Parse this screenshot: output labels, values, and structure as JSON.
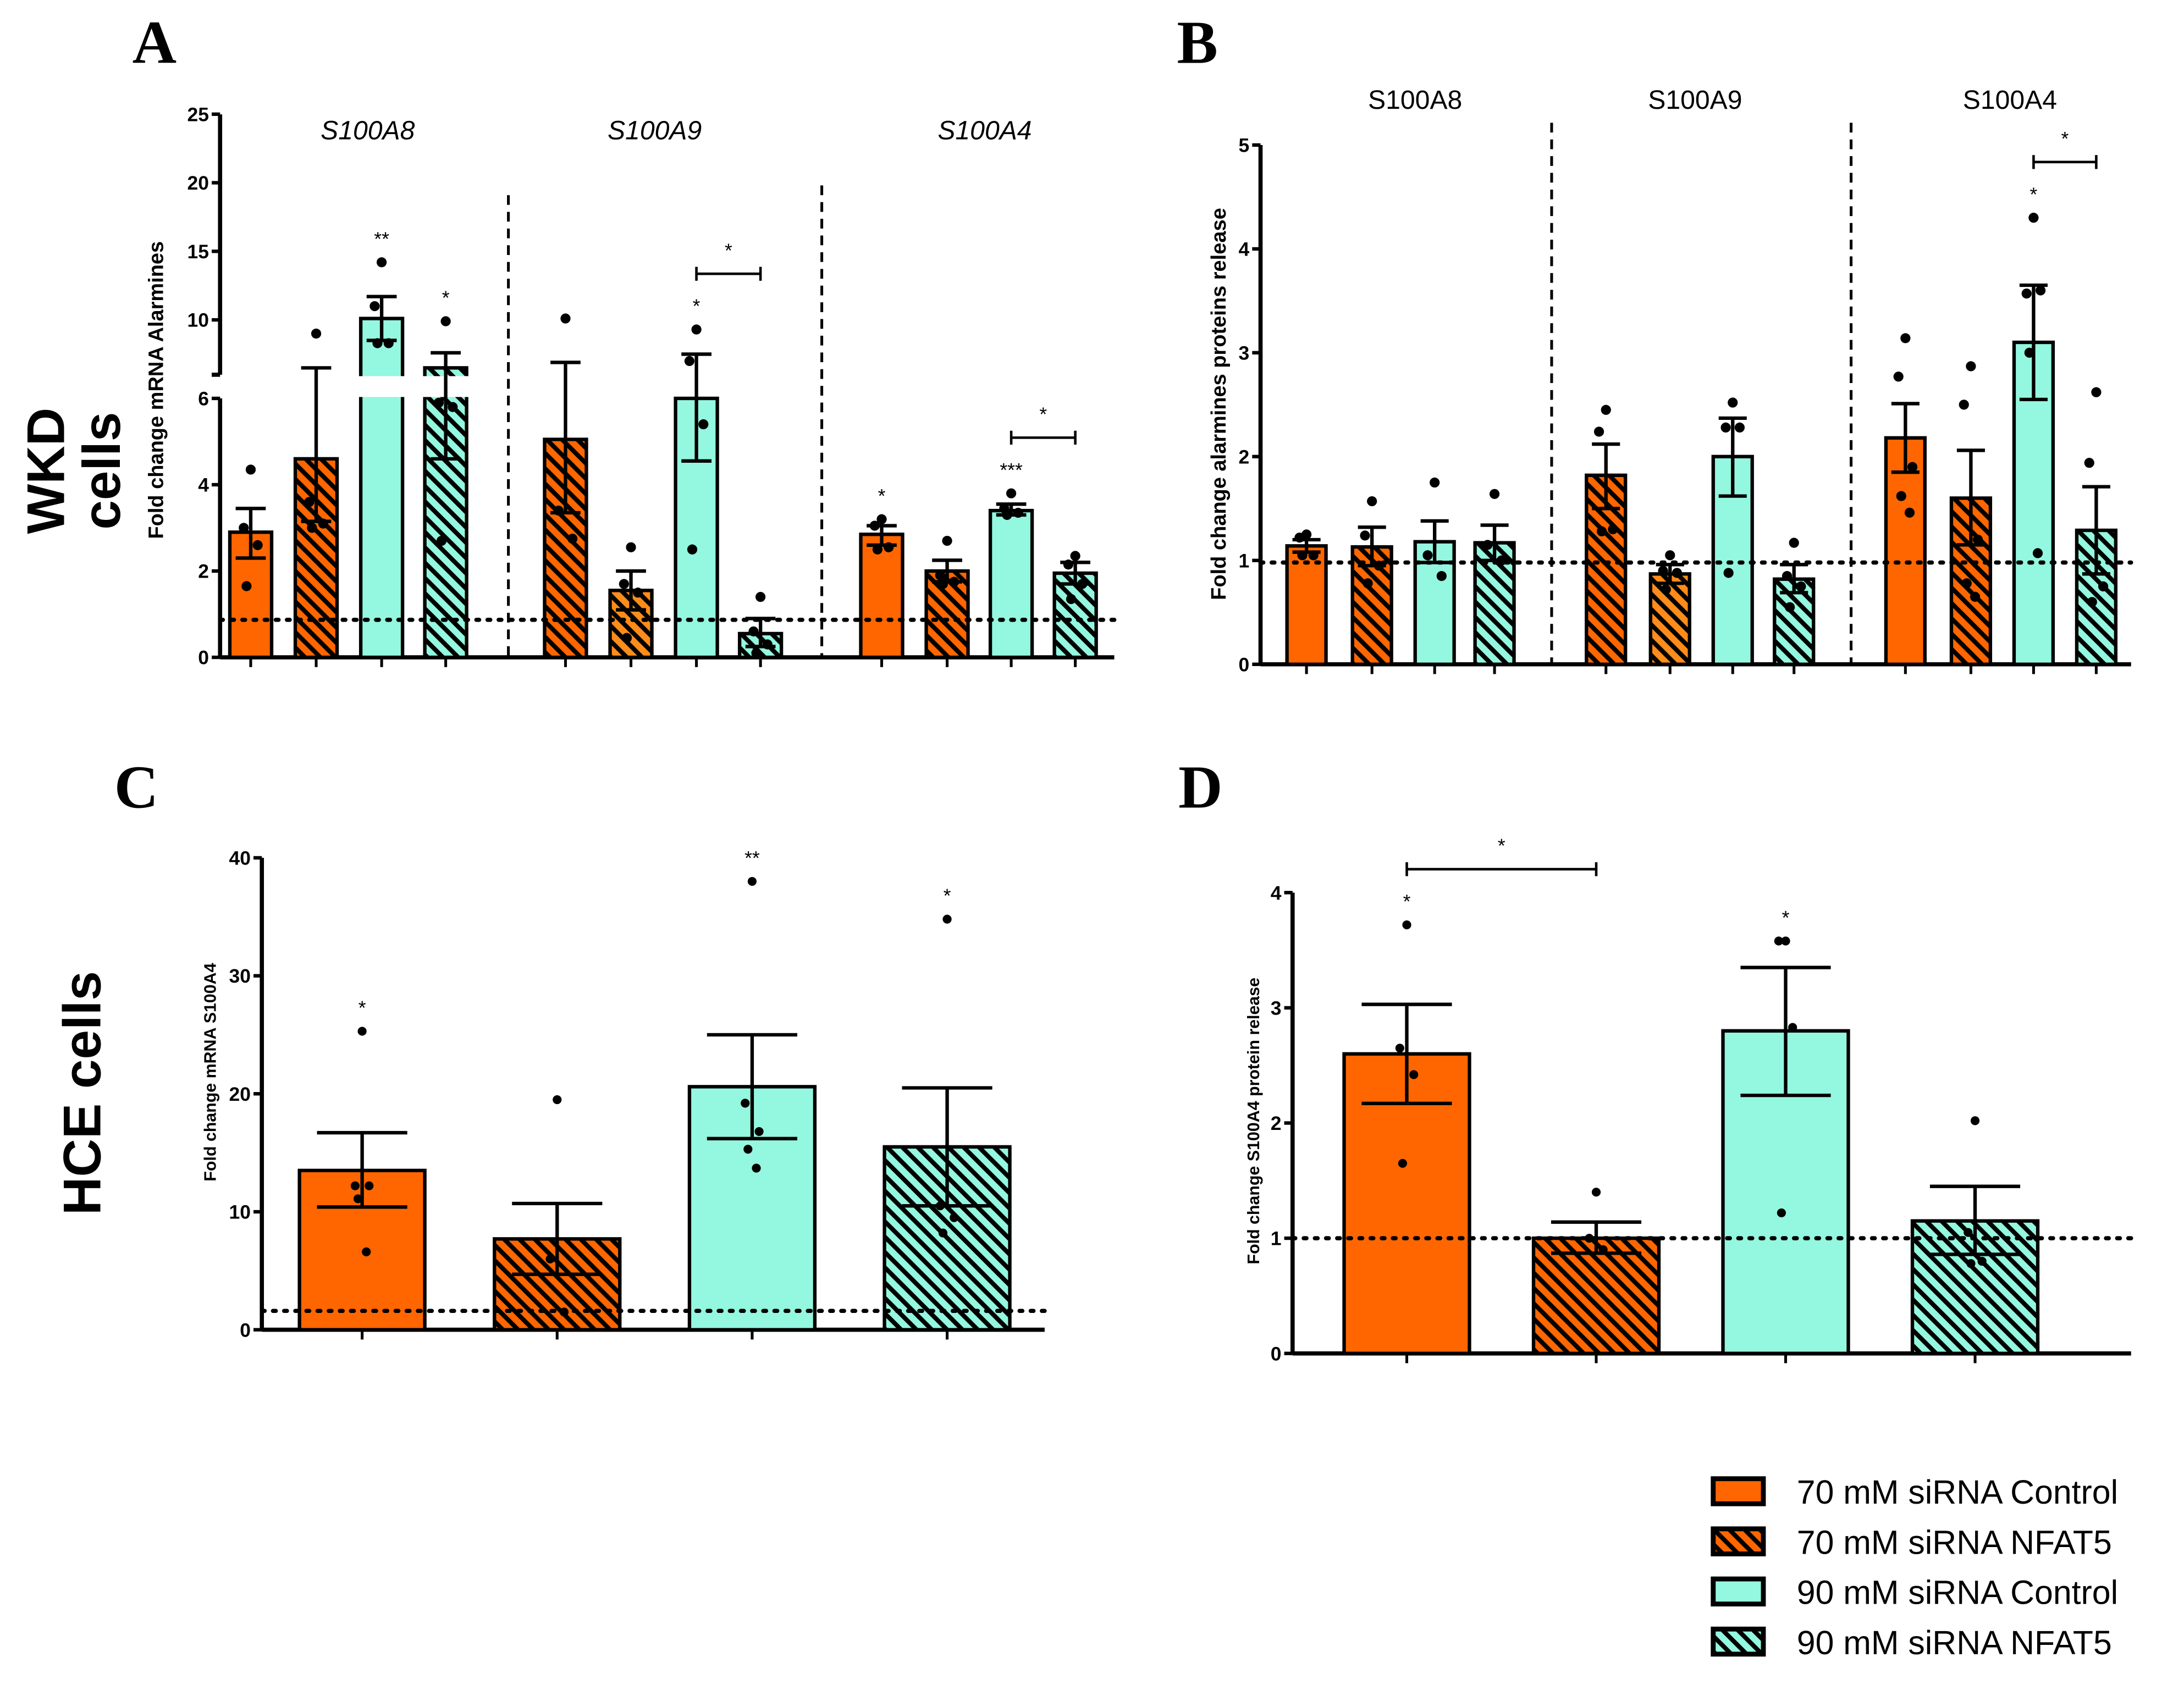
{
  "row_labels": {
    "wkd_line1": "WKD",
    "wkd_line2": "cells",
    "hce": "HCE cells"
  },
  "colors": {
    "orange": "#ff6600",
    "orange_light": "#ff8c1a",
    "cyan": "#94f7df",
    "ink": "#000000"
  },
  "legend": [
    {
      "label": "70 mM siRNA Control",
      "color": "#ff6600",
      "hatched": false
    },
    {
      "label": "70 mM siRNA NFAT5",
      "color": "#ff6600",
      "hatched": true
    },
    {
      "label": "90 mM siRNA Control",
      "color": "#94f7df",
      "hatched": false
    },
    {
      "label": "90 mM siRNA NFAT5",
      "color": "#94f7df",
      "hatched": true
    }
  ],
  "chart_data": [
    {
      "panel": "A",
      "type": "bar",
      "ylabel": "Fold change mRNA Alarmines",
      "ylim": [
        0,
        25
      ],
      "axis_break": {
        "lower": [
          0,
          6
        ],
        "upper": [
          6,
          25
        ]
      },
      "yticks": [
        0,
        2,
        4,
        6,
        10,
        15,
        20,
        25
      ],
      "group_label_italic": true,
      "reference_line": 0.87,
      "groups": [
        {
          "name": "S100A8",
          "bars": [
            {
              "series": 0,
              "mean": 2.9,
              "err": [
                2.3,
                3.45
              ],
              "points": [
                4.35,
                3.0,
                2.6,
                1.65
              ],
              "sig": ""
            },
            {
              "series": 1,
              "mean": 4.6,
              "err": [
                3.15,
                6.5
              ],
              "points": [
                9.0,
                3.6,
                3.1,
                3.0
              ],
              "sig": ""
            },
            {
              "series": 2,
              "mean": 10.1,
              "err": [
                8.5,
                11.7
              ],
              "points": [
                14.2,
                11.0,
                8.3,
                8.3
              ],
              "sig": "**"
            },
            {
              "series": 3,
              "mean": 6.5,
              "err": [
                4.6,
                7.6
              ],
              "points": [
                9.9,
                5.9,
                5.8,
                2.7
              ],
              "sig": "*"
            }
          ]
        },
        {
          "name": "S100A9",
          "bars": [
            {
              "series": 1,
              "mean": 5.05,
              "err": [
                3.35,
                6.9
              ],
              "points": [
                10.1,
                3.4,
                2.75
              ],
              "sig": ""
            },
            {
              "series": 1,
              "color": "#ff8c1a",
              "mean": 1.55,
              "err": [
                1.1,
                2.0
              ],
              "points": [
                2.55,
                1.7,
                1.5,
                0.45
              ],
              "sig": ""
            },
            {
              "series": 2,
              "mean": 6.0,
              "err": [
                4.55,
                7.5
              ],
              "points": [
                9.3,
                7.0,
                5.4,
                2.5
              ],
              "sig": "*"
            },
            {
              "series": 3,
              "mean": 0.55,
              "err": [
                0.25,
                0.9
              ],
              "points": [
                1.4,
                0.6,
                0.3,
                0.1
              ],
              "sig": ""
            }
          ]
        },
        {
          "name": "S100A4",
          "bars": [
            {
              "series": 0,
              "mean": 2.85,
              "err": [
                2.6,
                3.05
              ],
              "points": [
                3.2,
                3.05,
                2.55,
                2.5
              ],
              "sig": "*"
            },
            {
              "series": 1,
              "mean": 2.0,
              "err": [
                1.75,
                2.25
              ],
              "points": [
                2.7,
                1.9,
                1.75,
                1.7
              ],
              "sig": ""
            },
            {
              "series": 2,
              "mean": 3.4,
              "err": [
                3.3,
                3.55
              ],
              "points": [
                3.8,
                3.45,
                3.35,
                3.3
              ],
              "sig": "***"
            },
            {
              "series": 3,
              "mean": 1.95,
              "err": [
                1.7,
                2.2
              ],
              "points": [
                2.35,
                2.15,
                1.7,
                1.35
              ],
              "sig": ""
            }
          ]
        }
      ],
      "brackets": [
        {
          "group": 1,
          "from": 2,
          "to": 3,
          "label": "*"
        },
        {
          "group": 2,
          "from": 2,
          "to": 3,
          "label": "*"
        }
      ]
    },
    {
      "panel": "B",
      "type": "bar",
      "ylabel": "Fold change alarmines proteins release",
      "ylim": [
        0,
        5
      ],
      "yticks": [
        0,
        1,
        2,
        3,
        4,
        5
      ],
      "group_label_italic": false,
      "reference_line": 0.98,
      "groups": [
        {
          "name": "S100A8",
          "bars": [
            {
              "series": 0,
              "mean": 1.14,
              "err": [
                1.08,
                1.2
              ],
              "points": [
                1.25,
                1.22,
                1.05,
                1.05
              ],
              "sig": ""
            },
            {
              "series": 1,
              "mean": 1.13,
              "err": [
                0.95,
                1.32
              ],
              "points": [
                1.57,
                1.24,
                0.95,
                0.78
              ],
              "sig": ""
            },
            {
              "series": 2,
              "mean": 1.18,
              "err": [
                0.98,
                1.38
              ],
              "points": [
                1.75,
                1.05,
                0.85
              ],
              "sig": ""
            },
            {
              "series": 3,
              "mean": 1.17,
              "err": [
                1.0,
                1.34
              ],
              "points": [
                1.64,
                1.15,
                1.0
              ],
              "sig": ""
            }
          ]
        },
        {
          "name": "S100A9",
          "bars": [
            {
              "series": 1,
              "mean": 1.82,
              "err": [
                1.5,
                2.12
              ],
              "points": [
                2.45,
                2.24,
                1.3,
                1.28
              ],
              "sig": ""
            },
            {
              "series": 1,
              "color": "#ff8c1a",
              "mean": 0.87,
              "err": [
                0.78,
                0.96
              ],
              "points": [
                1.05,
                0.9,
                0.88,
                0.72
              ],
              "sig": ""
            },
            {
              "series": 2,
              "mean": 2.0,
              "err": [
                1.62,
                2.37
              ],
              "points": [
                2.52,
                2.28,
                2.28,
                0.88
              ],
              "sig": ""
            },
            {
              "series": 3,
              "mean": 0.82,
              "err": [
                0.69,
                0.96
              ],
              "points": [
                1.17,
                0.85,
                0.75,
                0.55
              ],
              "sig": ""
            }
          ]
        },
        {
          "name": "S100A4",
          "bars": [
            {
              "series": 0,
              "mean": 2.18,
              "err": [
                1.85,
                2.51
              ],
              "points": [
                3.14,
                2.77,
                1.9,
                1.62,
                1.46
              ],
              "sig": ""
            },
            {
              "series": 1,
              "mean": 1.6,
              "err": [
                1.15,
                2.06
              ],
              "points": [
                2.87,
                2.5,
                1.2,
                0.78,
                0.65
              ],
              "sig": ""
            },
            {
              "series": 2,
              "mean": 3.1,
              "err": [
                2.55,
                3.65
              ],
              "points": [
                4.3,
                3.57,
                3.6,
                3.0,
                1.07
              ],
              "sig": "*"
            },
            {
              "series": 3,
              "mean": 1.29,
              "err": [
                0.87,
                1.71
              ],
              "points": [
                2.62,
                1.94,
                0.75,
                0.6
              ],
              "sig": ""
            }
          ]
        }
      ],
      "brackets": [
        {
          "group": 2,
          "from": 2,
          "to": 3,
          "label": "*"
        }
      ]
    },
    {
      "panel": "C",
      "type": "bar",
      "ylabel": "Fold change mRNA S100A4",
      "ylim": [
        0,
        40
      ],
      "yticks": [
        0,
        10,
        20,
        30,
        40
      ],
      "group_label_italic": false,
      "reference_line": 1.6,
      "groups": [
        {
          "name": "",
          "bars": [
            {
              "series": 0,
              "mean": 13.5,
              "err": [
                10.4,
                16.7
              ],
              "points": [
                25.3,
                12.2,
                12.2,
                11.1,
                6.6
              ],
              "sig": "*"
            },
            {
              "series": 1,
              "mean": 7.7,
              "err": [
                4.7,
                10.7
              ],
              "points": [
                19.5,
                6.0,
                1.5
              ],
              "sig": ""
            },
            {
              "series": 2,
              "mean": 20.6,
              "err": [
                16.2,
                25.0
              ],
              "points": [
                38.0,
                19.2,
                16.8,
                15.3,
                13.7
              ],
              "sig": "**"
            },
            {
              "series": 3,
              "mean": 15.5,
              "err": [
                10.5,
                20.5
              ],
              "points": [
                34.8,
                10.5,
                9.5,
                8.2
              ],
              "sig": "*"
            }
          ]
        }
      ],
      "brackets": []
    },
    {
      "panel": "D",
      "type": "bar",
      "ylabel": "Fold change S100A4 protein release",
      "ylim": [
        0,
        4
      ],
      "yticks": [
        0,
        1,
        2,
        3,
        4
      ],
      "group_label_italic": false,
      "reference_line": 1.0,
      "groups": [
        {
          "name": "",
          "bars": [
            {
              "series": 0,
              "mean": 2.6,
              "err": [
                2.17,
                3.03
              ],
              "points": [
                3.72,
                2.65,
                2.42,
                1.65
              ],
              "sig": "*"
            },
            {
              "series": 1,
              "mean": 1.0,
              "err": [
                0.87,
                1.14
              ],
              "points": [
                1.4,
                1.0,
                0.9
              ],
              "sig": ""
            },
            {
              "series": 2,
              "mean": 2.8,
              "err": [
                2.24,
                3.35
              ],
              "points": [
                3.58,
                3.58,
                2.83,
                1.22
              ],
              "sig": "*"
            },
            {
              "series": 3,
              "mean": 1.15,
              "err": [
                0.86,
                1.45
              ],
              "points": [
                2.02,
                1.05,
                0.8,
                0.78
              ],
              "sig": ""
            }
          ]
        }
      ],
      "brackets": [
        {
          "group": 0,
          "from": 0,
          "to": 1,
          "label": "*"
        }
      ]
    }
  ]
}
